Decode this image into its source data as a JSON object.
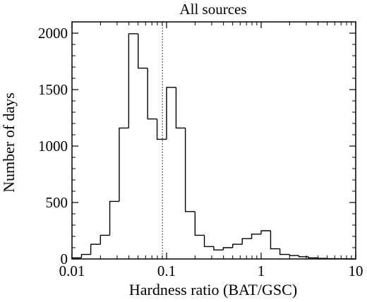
{
  "chart_data": {
    "type": "histogram",
    "title": "All sources",
    "xlabel": "Hardness ratio (BAT/GSC)",
    "ylabel": "Number of days",
    "xscale": "log",
    "xlim": [
      0.01,
      10
    ],
    "ylim": [
      0,
      2100
    ],
    "xticks": [
      {
        "value": 0.01,
        "label": "0.01"
      },
      {
        "value": 0.1,
        "label": "0.1"
      },
      {
        "value": 1,
        "label": "1"
      },
      {
        "value": 10,
        "label": "10"
      }
    ],
    "yticks": [
      {
        "value": 0,
        "label": "0"
      },
      {
        "value": 500,
        "label": "500"
      },
      {
        "value": 1000,
        "label": "1000"
      },
      {
        "value": 1500,
        "label": "1500"
      },
      {
        "value": 2000,
        "label": "2000"
      }
    ],
    "bin_edges": [
      0.01,
      0.0126,
      0.0158,
      0.02,
      0.0251,
      0.0316,
      0.0398,
      0.0501,
      0.0631,
      0.0794,
      0.1,
      0.126,
      0.158,
      0.2,
      0.251,
      0.316,
      0.398,
      0.501,
      0.631,
      0.794,
      1.0,
      1.26,
      1.58,
      2.0,
      2.51,
      3.16,
      3.98,
      5.01,
      6.31,
      7.94,
      10.0
    ],
    "counts": [
      10,
      40,
      130,
      210,
      510,
      1160,
      1995,
      1690,
      1240,
      1060,
      1520,
      1160,
      420,
      210,
      110,
      80,
      100,
      130,
      180,
      220,
      250,
      90,
      40,
      30,
      20,
      10,
      5,
      3,
      2,
      0
    ],
    "reference_line": {
      "x": 0.0905,
      "style": "dotted"
    },
    "grid": false
  }
}
